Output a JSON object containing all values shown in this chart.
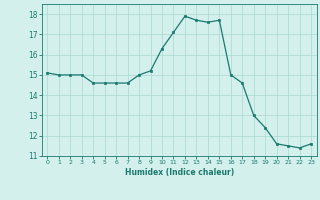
{
  "x": [
    0,
    1,
    2,
    3,
    4,
    5,
    6,
    7,
    8,
    9,
    10,
    11,
    12,
    13,
    14,
    15,
    16,
    17,
    18,
    19,
    20,
    21,
    22,
    23
  ],
  "y": [
    15.1,
    15.0,
    15.0,
    15.0,
    14.6,
    14.6,
    14.6,
    14.6,
    15.0,
    15.2,
    16.3,
    17.1,
    17.9,
    17.7,
    17.6,
    17.7,
    15.0,
    14.6,
    13.0,
    12.4,
    11.6,
    11.5,
    11.4,
    11.6
  ],
  "xlim": [
    -0.5,
    23.5
  ],
  "ylim": [
    11,
    18.5
  ],
  "yticks": [
    11,
    12,
    13,
    14,
    15,
    16,
    17,
    18
  ],
  "xticks": [
    0,
    1,
    2,
    3,
    4,
    5,
    6,
    7,
    8,
    9,
    10,
    11,
    12,
    13,
    14,
    15,
    16,
    17,
    18,
    19,
    20,
    21,
    22,
    23
  ],
  "xlabel": "Humidex (Indice chaleur)",
  "line_color": "#1a7a6e",
  "marker": "s",
  "marker_size": 2.0,
  "bg_color": "#d4f0ec",
  "grid_color": "#aad8d0",
  "lw": 0.9
}
